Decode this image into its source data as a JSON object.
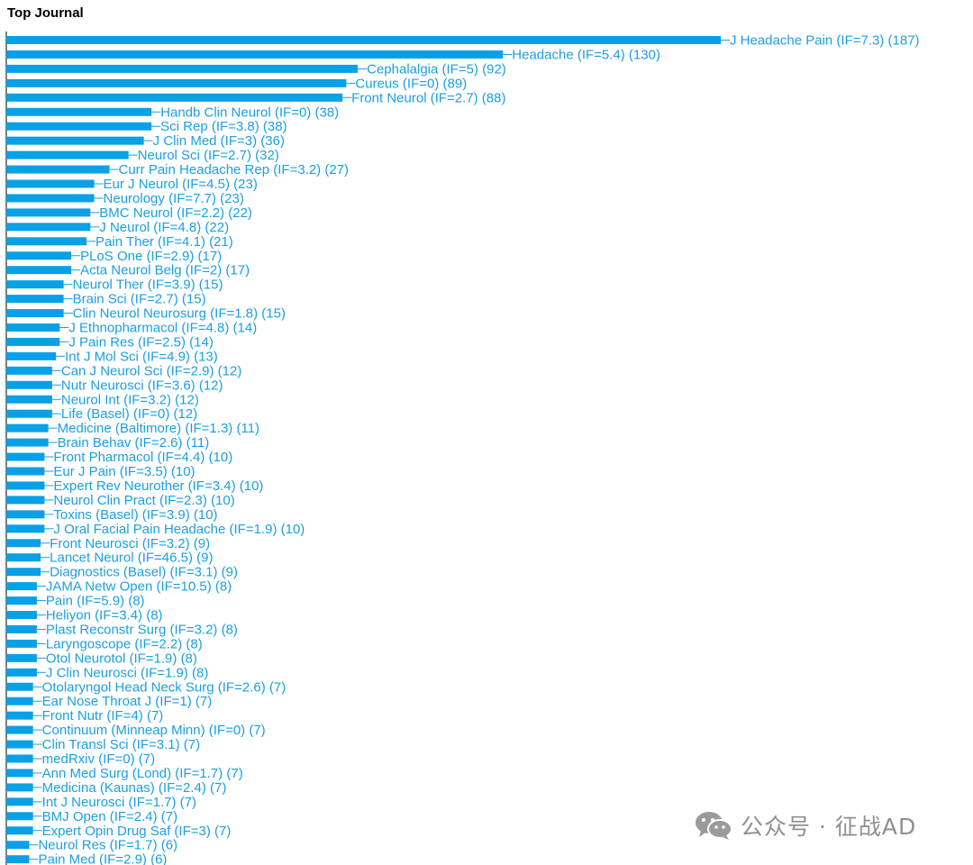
{
  "chart_data": {
    "type": "bar",
    "orientation": "horizontal",
    "title": "Top Journal",
    "bar_color": "#0aa0e6",
    "label_color": "#1a9fe0",
    "axis_color": "#000000",
    "xlim": [
      0,
      187
    ],
    "grid": false,
    "categories": [
      "J Headache Pain (IF=7.3) (187)",
      "Headache (IF=5.4) (130)",
      "Cephalalgia (IF=5) (92)",
      "Cureus (IF=0) (89)",
      "Front Neurol (IF=2.7) (88)",
      "Handb Clin Neurol (IF=0) (38)",
      "Sci Rep (IF=3.8) (38)",
      "J Clin Med (IF=3) (36)",
      "Neurol Sci (IF=2.7) (32)",
      "Curr Pain Headache Rep (IF=3.2) (27)",
      "Eur J Neurol (IF=4.5) (23)",
      "Neurology (IF=7.7) (23)",
      "BMC Neurol (IF=2.2) (22)",
      "J Neurol (IF=4.8) (22)",
      "Pain Ther (IF=4.1) (21)",
      "PLoS One (IF=2.9) (17)",
      "Acta Neurol Belg (IF=2) (17)",
      "Neurol Ther (IF=3.9) (15)",
      "Brain Sci (IF=2.7) (15)",
      "Clin Neurol Neurosurg (IF=1.8) (15)",
      "J Ethnopharmacol (IF=4.8) (14)",
      "J Pain Res (IF=2.5) (14)",
      "Int J Mol Sci (IF=4.9) (13)",
      "Can J Neurol Sci (IF=2.9) (12)",
      "Nutr Neurosci (IF=3.6) (12)",
      "Neurol Int (IF=3.2) (12)",
      "Life (Basel) (IF=0) (12)",
      "Medicine (Baltimore) (IF=1.3) (11)",
      "Brain Behav (IF=2.6) (11)",
      "Front Pharmacol (IF=4.4) (10)",
      "Eur J Pain (IF=3.5) (10)",
      "Expert Rev Neurother (IF=3.4) (10)",
      "Neurol Clin Pract (IF=2.3) (10)",
      "Toxins (Basel) (IF=3.9) (10)",
      "J Oral Facial Pain Headache (IF=1.9) (10)",
      "Front Neurosci (IF=3.2) (9)",
      "Lancet Neurol (IF=46.5) (9)",
      "Diagnostics (Basel) (IF=3.1) (9)",
      "JAMA Netw Open (IF=10.5) (8)",
      "Pain (IF=5.9) (8)",
      "Heliyon (IF=3.4) (8)",
      "Plast Reconstr Surg (IF=3.2) (8)",
      "Laryngoscope (IF=2.2) (8)",
      "Otol Neurotol (IF=1.9) (8)",
      "J Clin Neurosci (IF=1.9) (8)",
      "Otolaryngol Head Neck Surg (IF=2.6) (7)",
      "Ear Nose Throat J (IF=1) (7)",
      "Front Nutr (IF=4) (7)",
      "Continuum (Minneap Minn) (IF=0) (7)",
      "Clin Transl Sci (IF=3.1) (7)",
      "medRxiv (IF=0) (7)",
      "Ann Med Surg (Lond) (IF=1.7) (7)",
      "Medicina (Kaunas) (IF=2.4) (7)",
      "Int J Neurosci (IF=1.7) (7)",
      "BMJ Open (IF=2.4) (7)",
      "Expert Opin Drug Saf (IF=3) (7)",
      "Neurol Res (IF=1.7) (6)",
      "Pain Med (IF=2.9) (6)"
    ],
    "values": [
      187,
      130,
      92,
      89,
      88,
      38,
      38,
      36,
      32,
      27,
      23,
      23,
      22,
      22,
      21,
      17,
      17,
      15,
      15,
      15,
      14,
      14,
      13,
      12,
      12,
      12,
      12,
      11,
      11,
      10,
      10,
      10,
      10,
      10,
      10,
      9,
      9,
      9,
      8,
      8,
      8,
      8,
      8,
      8,
      8,
      7,
      7,
      7,
      7,
      7,
      7,
      7,
      7,
      7,
      7,
      7,
      6,
      6
    ]
  },
  "watermark": {
    "text": "公众号 · 征战AD",
    "icon": "wechat-icon"
  }
}
